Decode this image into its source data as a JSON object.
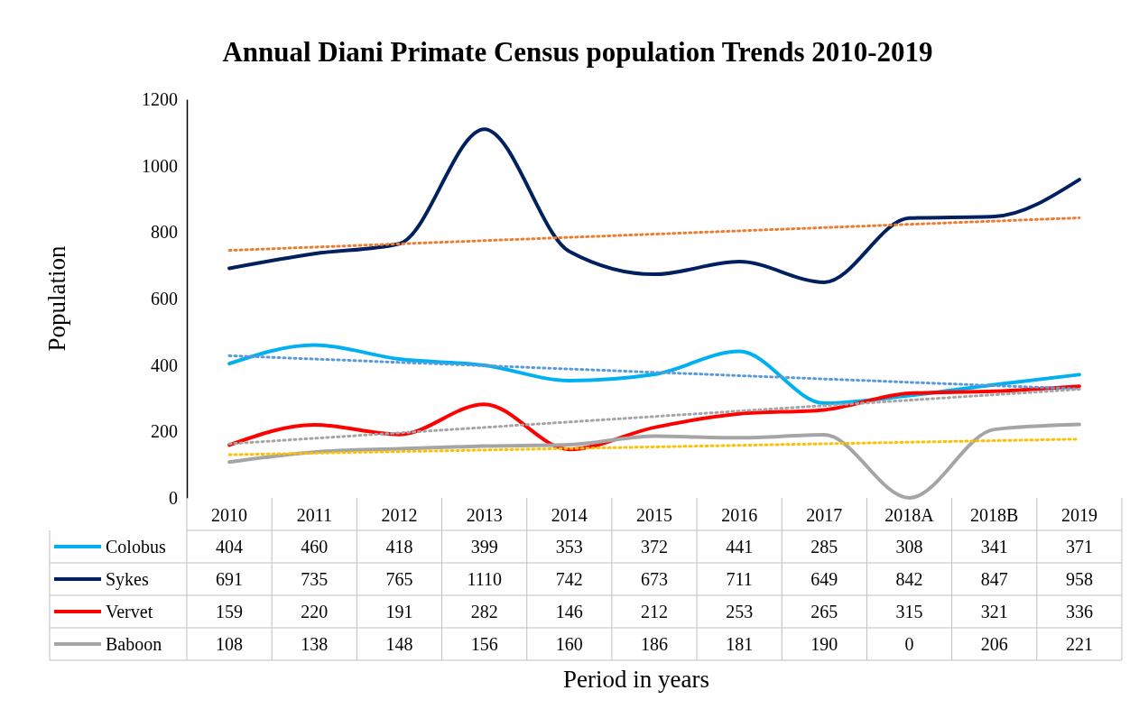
{
  "chart_data": {
    "type": "line",
    "title": "Annual Diani Primate Census population Trends 2010-2019",
    "ylabel": "Population",
    "annotations": [
      "Period in years"
    ],
    "categories": [
      "2010",
      "2011",
      "2012",
      "2013",
      "2014",
      "2015",
      "2016",
      "2017",
      "2018A",
      "2018B",
      "2019"
    ],
    "ylim": [
      0,
      1200
    ],
    "yticks": [
      0,
      200,
      400,
      600,
      800,
      1000,
      1200
    ],
    "grid": false,
    "legend": "bottom",
    "marker": "none",
    "series": [
      {
        "name": "Colobus",
        "color": "#00b0f0",
        "values": [
          404,
          460,
          418,
          399,
          353,
          372,
          441,
          285,
          308,
          341,
          371
        ],
        "value_labels": [
          "404",
          "460",
          "418",
          "399",
          "353",
          "372",
          "441",
          "285",
          "308",
          "341",
          "371"
        ]
      },
      {
        "name": "Sykes",
        "color": "#002060",
        "values": [
          691,
          735,
          765,
          1110,
          742,
          673,
          711,
          649,
          842,
          847,
          958
        ],
        "value_labels": [
          "691",
          "735",
          "765",
          "1110",
          "742",
          "673",
          "711",
          "649",
          "842",
          "847",
          "958"
        ]
      },
      {
        "name": "Vervet",
        "color": "#ff0000",
        "values": [
          159,
          220,
          191,
          282,
          146,
          212,
          253,
          265,
          315,
          321,
          336
        ],
        "value_labels": [
          "159",
          "220",
          "191",
          "282",
          "146",
          "212",
          "253",
          "265",
          "315",
          "321",
          "336"
        ]
      },
      {
        "name": "Baboon",
        "color": "#a5a5a5",
        "values": [
          108,
          138,
          148,
          156,
          160,
          186,
          181,
          190,
          0,
          206,
          221
        ],
        "value_labels": [
          "108",
          "138",
          "148",
          "156",
          "160",
          "186",
          "181",
          "190",
          "0",
          "206",
          "221"
        ]
      },
      {
        "type": "line",
        "line_style": "dotted",
        "color": "#5b9bd5",
        "values": [
          428,
          null,
          null,
          null,
          null,
          null,
          null,
          null,
          null,
          null,
          328
        ]
      },
      {
        "type": "line",
        "line_style": "dotted",
        "color": "#ed7d31",
        "values": [
          745,
          null,
          null,
          null,
          null,
          null,
          null,
          null,
          null,
          null,
          843
        ]
      },
      {
        "type": "line",
        "line_style": "dotted",
        "color": "#a5a5a5",
        "values": [
          163,
          null,
          null,
          null,
          null,
          null,
          null,
          null,
          null,
          null,
          327
        ]
      },
      {
        "type": "line",
        "line_style": "dotted",
        "color": "#ffc000",
        "values": [
          130,
          null,
          null,
          null,
          null,
          null,
          null,
          null,
          null,
          null,
          177
        ]
      }
    ]
  }
}
